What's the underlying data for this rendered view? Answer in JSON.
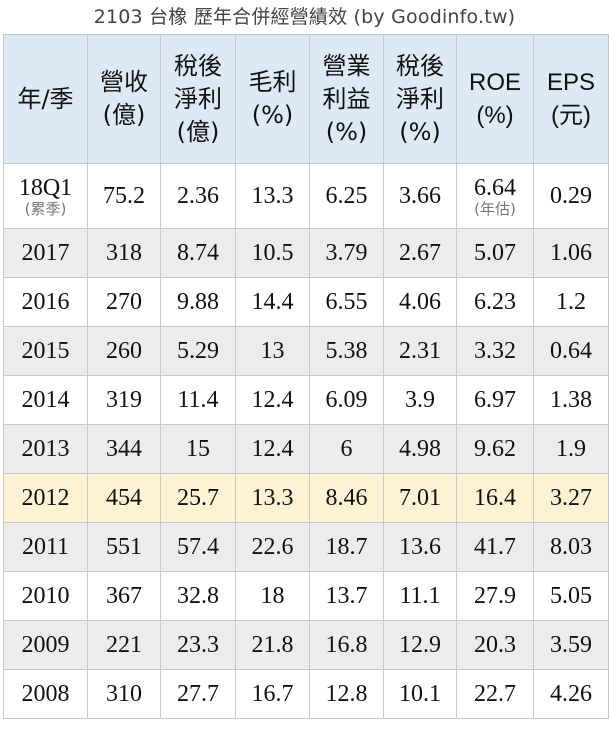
{
  "caption": "2103 台橡 歷年合併經營績效 (by Goodinfo.tw)",
  "headers": [
    [
      "年/季"
    ],
    [
      "營收",
      "(億)"
    ],
    [
      "稅後",
      "淨利",
      "(億)"
    ],
    [
      "毛利",
      "(%)"
    ],
    [
      "營業",
      "利益",
      "(%)"
    ],
    [
      "稅後",
      "淨利",
      "(%)"
    ],
    [
      "ROE",
      "(%)"
    ],
    [
      "EPS",
      "(元)"
    ]
  ],
  "first_row": {
    "period": "18Q1",
    "period_note": "(累季)",
    "revenue": "75.2",
    "net_income": "2.36",
    "gross_margin": "13.3",
    "operating_margin": "6.25",
    "net_margin": "3.66",
    "roe": "6.64",
    "roe_note": "(年估)",
    "eps": "0.29"
  },
  "rows": [
    [
      "2017",
      "318",
      "8.74",
      "10.5",
      "3.79",
      "2.67",
      "5.07",
      "1.06"
    ],
    [
      "2016",
      "270",
      "9.88",
      "14.4",
      "6.55",
      "4.06",
      "6.23",
      "1.2"
    ],
    [
      "2015",
      "260",
      "5.29",
      "13",
      "5.38",
      "2.31",
      "3.32",
      "0.64"
    ],
    [
      "2014",
      "319",
      "11.4",
      "12.4",
      "6.09",
      "3.9",
      "6.97",
      "1.38"
    ],
    [
      "2013",
      "344",
      "15",
      "12.4",
      "6",
      "4.98",
      "9.62",
      "1.9"
    ],
    [
      "2012",
      "454",
      "25.7",
      "13.3",
      "8.46",
      "7.01",
      "16.4",
      "3.27"
    ],
    [
      "2011",
      "551",
      "57.4",
      "22.6",
      "18.7",
      "13.6",
      "41.7",
      "8.03"
    ],
    [
      "2010",
      "367",
      "32.8",
      "18",
      "13.7",
      "11.1",
      "27.9",
      "5.05"
    ],
    [
      "2009",
      "221",
      "23.3",
      "21.8",
      "16.8",
      "12.9",
      "20.3",
      "3.59"
    ],
    [
      "2008",
      "310",
      "27.7",
      "16.7",
      "12.8",
      "10.1",
      "22.7",
      "4.26"
    ]
  ],
  "highlight_row_label": "2012",
  "colors": {
    "header_bg": "#dde9f5",
    "stripe_bg": "#ececec",
    "highlight_bg": "#fdf2d4",
    "border": "#c8c8c8"
  }
}
